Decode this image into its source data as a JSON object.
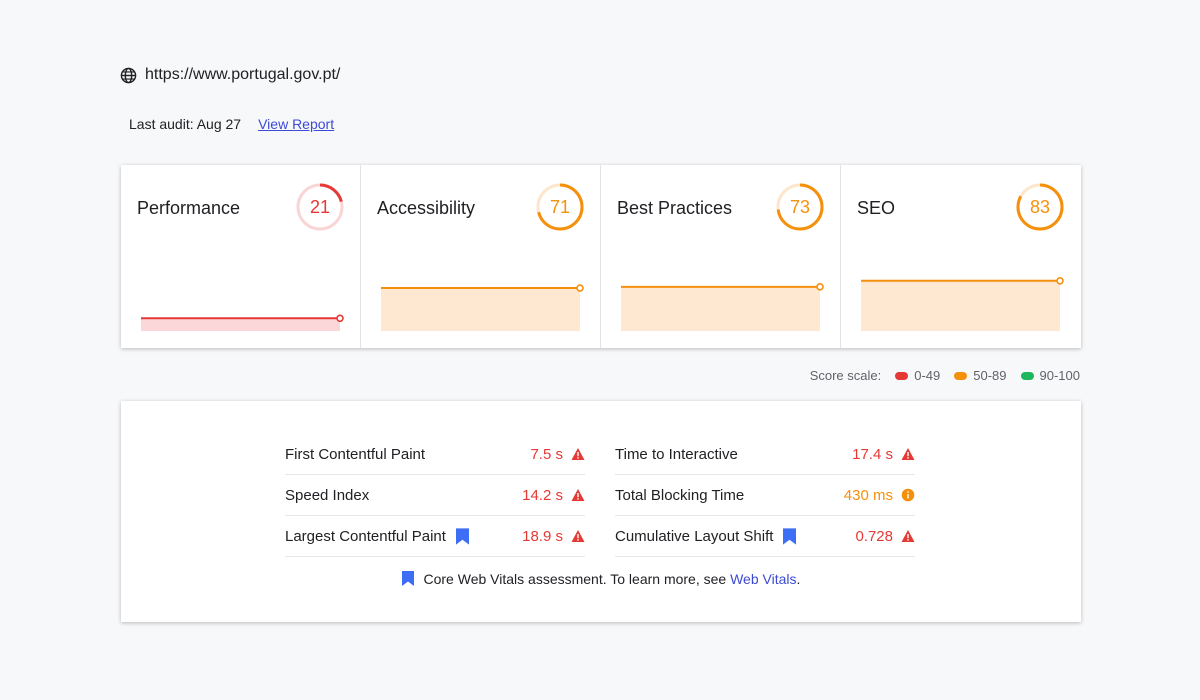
{
  "site": {
    "url": "https://www.portugal.gov.pt/"
  },
  "audit": {
    "label": "Last audit: Aug 27",
    "link_label": "View Report"
  },
  "categories": [
    {
      "title": "Performance",
      "score": "21",
      "score_value": 21,
      "color": "#e53935",
      "track": "#f9d5d5",
      "fill": "#fbd7d9"
    },
    {
      "title": "Accessibility",
      "score": "71",
      "score_value": 71,
      "color": "#f5900d",
      "track": "#fde6cc",
      "fill": "#ffe8d1"
    },
    {
      "title": "Best Practices",
      "score": "73",
      "score_value": 73,
      "color": "#f5900d",
      "track": "#fde6cc",
      "fill": "#ffe8d1"
    },
    {
      "title": "SEO",
      "score": "83",
      "score_value": 83,
      "color": "#f5900d",
      "track": "#fde6cc",
      "fill": "#ffe8d1"
    }
  ],
  "scale": {
    "label": "Score scale:",
    "ranges": [
      {
        "label": "0-49",
        "color": "#e53935"
      },
      {
        "label": "50-89",
        "color": "#f5900d"
      },
      {
        "label": "90-100",
        "color": "#1fb75b"
      }
    ]
  },
  "metrics": {
    "left": [
      {
        "label": "First Contentful Paint",
        "value": "7.5 s",
        "status": "fail",
        "vital": false
      },
      {
        "label": "Speed Index",
        "value": "14.2 s",
        "status": "fail",
        "vital": false
      },
      {
        "label": "Largest Contentful Paint",
        "value": "18.9 s",
        "status": "fail",
        "vital": true
      }
    ],
    "right": [
      {
        "label": "Time to Interactive",
        "value": "17.4 s",
        "status": "fail",
        "vital": false
      },
      {
        "label": "Total Blocking Time",
        "value": "430 ms",
        "status": "average",
        "vital": false
      },
      {
        "label": "Cumulative Layout Shift",
        "value": "0.728",
        "status": "fail",
        "vital": true
      }
    ]
  },
  "status_colors": {
    "fail": "#e53935",
    "average": "#f5900d",
    "vital": "#3d6ef5"
  },
  "footnote": {
    "text": "Core Web Vitals assessment. To learn more, see",
    "link": "Web Vitals",
    "end": "."
  }
}
